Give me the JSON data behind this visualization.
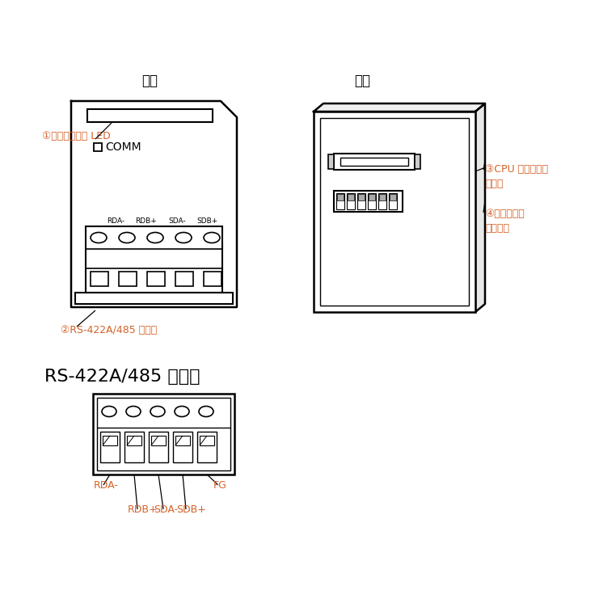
{
  "bg_color": "#ffffff",
  "line_color": "#000000",
  "label_color": "#d4622a",
  "front_label": "正面",
  "back_label": "背面",
  "label1": "①通信状态指示 LED",
  "label2": "②RS-422A/485 连接器",
  "label3": "③CPU 单元连接用\n连接器",
  "label4": "④动作设定用\n拨动开关",
  "terminal_title": "RS-422A/485 端子台",
  "comm_label": "COMM",
  "port_labels": [
    "RDA-",
    "RDB+",
    "SDA-",
    "SDB+"
  ]
}
